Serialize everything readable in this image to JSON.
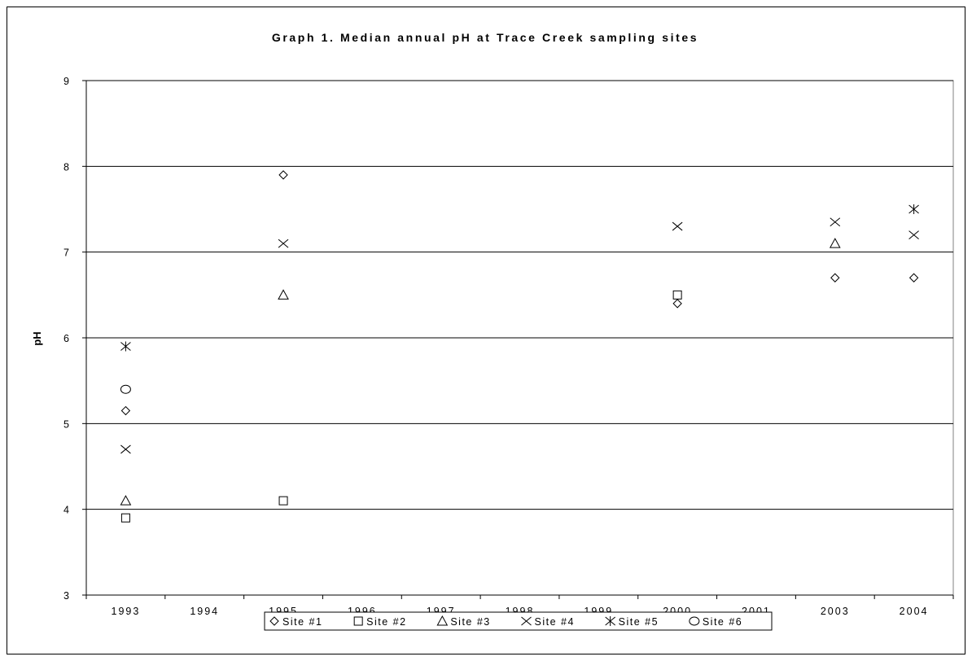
{
  "chart_data": {
    "type": "scatter",
    "title": "Graph 1. Median annual pH at Trace Creek sampling sites",
    "xlabel": "",
    "ylabel": "pH",
    "categories": [
      "1993",
      "1994",
      "1995",
      "1996",
      "1997",
      "1998",
      "1999",
      "2000",
      "2001",
      "2003",
      "2004"
    ],
    "ylim": [
      3,
      9
    ],
    "yticks": [
      3,
      4,
      5,
      6,
      7,
      8,
      9
    ],
    "grid": "horizontal",
    "legend_position": "bottom",
    "series": [
      {
        "name": "Site #1",
        "marker": "diamond",
        "points": [
          {
            "x": "1993",
            "y": 5.15
          },
          {
            "x": "1995",
            "y": 7.9
          },
          {
            "x": "2000",
            "y": 6.4
          },
          {
            "x": "2003",
            "y": 6.7
          },
          {
            "x": "2004",
            "y": 6.7
          }
        ]
      },
      {
        "name": "Site #2",
        "marker": "square",
        "points": [
          {
            "x": "1993",
            "y": 3.9
          },
          {
            "x": "1995",
            "y": 4.1
          },
          {
            "x": "2000",
            "y": 6.5
          }
        ]
      },
      {
        "name": "Site #3",
        "marker": "triangle",
        "points": [
          {
            "x": "1993",
            "y": 4.1
          },
          {
            "x": "1995",
            "y": 6.5
          },
          {
            "x": "2003",
            "y": 7.1
          }
        ]
      },
      {
        "name": "Site #4",
        "marker": "x",
        "points": [
          {
            "x": "1993",
            "y": 4.7
          },
          {
            "x": "1995",
            "y": 7.1
          },
          {
            "x": "2000",
            "y": 7.3
          },
          {
            "x": "2003",
            "y": 7.35
          },
          {
            "x": "2004",
            "y": 7.2
          }
        ]
      },
      {
        "name": "Site #5",
        "marker": "asterisk",
        "points": [
          {
            "x": "1993",
            "y": 5.9
          },
          {
            "x": "2004",
            "y": 7.5
          }
        ]
      },
      {
        "name": "Site #6",
        "marker": "circle",
        "points": [
          {
            "x": "1993",
            "y": 5.4
          }
        ]
      }
    ]
  }
}
